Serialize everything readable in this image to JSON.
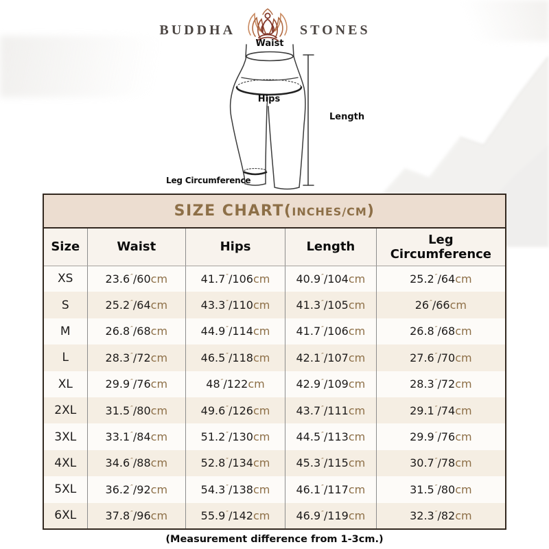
{
  "brand": {
    "word_left": "BUDDHA",
    "word_right": "STONES"
  },
  "diagram": {
    "waist_label": "Waist",
    "hips_label": "Hips",
    "length_label": "Length",
    "leg_label": "Leg Circumference"
  },
  "size_chart": {
    "title_prefix": "SIZE CHART(",
    "title_unit": "INCHES/CM",
    "title_suffix": ")",
    "columns": [
      "Size",
      "Waist",
      "Hips",
      "Length",
      "Leg Circumference"
    ],
    "unit_inch_mark": "″",
    "unit_cm": "cm",
    "rows": [
      {
        "size": "XS",
        "waist": [
          "23.6",
          "60"
        ],
        "hips": [
          "41.7",
          "106"
        ],
        "length": [
          "40.9",
          "104"
        ],
        "leg": [
          "25.2",
          "64"
        ]
      },
      {
        "size": "S",
        "waist": [
          "25.2",
          "64"
        ],
        "hips": [
          "43.3",
          "110"
        ],
        "length": [
          "41.3",
          "105"
        ],
        "leg": [
          "26",
          "66"
        ]
      },
      {
        "size": "M",
        "waist": [
          "26.8",
          "68"
        ],
        "hips": [
          "44.9",
          "114"
        ],
        "length": [
          "41.7",
          "106"
        ],
        "leg": [
          "26.8",
          "68"
        ]
      },
      {
        "size": "L",
        "waist": [
          "28.3",
          "72"
        ],
        "hips": [
          "46.5",
          "118"
        ],
        "length": [
          "42.1",
          "107"
        ],
        "leg": [
          "27.6",
          "70"
        ]
      },
      {
        "size": "XL",
        "waist": [
          "29.9",
          "76"
        ],
        "hips": [
          "48",
          "122"
        ],
        "length": [
          "42.9",
          "109"
        ],
        "leg": [
          "28.3",
          "72"
        ]
      },
      {
        "size": "2XL",
        "waist": [
          "31.5",
          "80"
        ],
        "hips": [
          "49.6",
          "126"
        ],
        "length": [
          "43.7",
          "111"
        ],
        "leg": [
          "29.1",
          "74"
        ]
      },
      {
        "size": "3XL",
        "waist": [
          "33.1",
          "84"
        ],
        "hips": [
          "51.2",
          "130"
        ],
        "length": [
          "44.5",
          "113"
        ],
        "leg": [
          "29.9",
          "76"
        ]
      },
      {
        "size": "4XL",
        "waist": [
          "34.6",
          "88"
        ],
        "hips": [
          "52.8",
          "134"
        ],
        "length": [
          "45.3",
          "115"
        ],
        "leg": [
          "30.7",
          "78"
        ]
      },
      {
        "size": "5XL",
        "waist": [
          "36.2",
          "92"
        ],
        "hips": [
          "54.3",
          "138"
        ],
        "length": [
          "46.1",
          "117"
        ],
        "leg": [
          "31.5",
          "80"
        ]
      },
      {
        "size": "6XL",
        "waist": [
          "37.8",
          "96"
        ],
        "hips": [
          "55.9",
          "142"
        ],
        "length": [
          "46.9",
          "119"
        ],
        "leg": [
          "32.3",
          "82"
        ]
      }
    ]
  },
  "footnote": "(Measurement difference from 1-3cm.)",
  "colors": {
    "accent_brown": "#8d6f47",
    "title_bar_bg": "#ecddd0",
    "alt_row_bg": "#f5eee3",
    "table_border": "#32281f",
    "lotus_dark": "#82372а-fix"
  }
}
